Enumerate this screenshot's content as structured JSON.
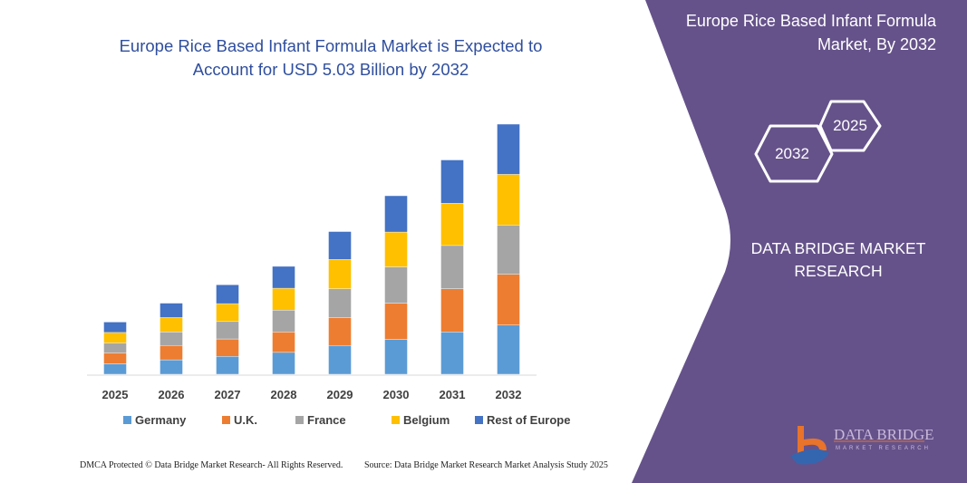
{
  "chart_data": {
    "type": "bar",
    "stacked": true,
    "title": "Europe Rice Based Infant Formula Market is Expected to Account for USD 5.03 Billion by 2032",
    "categories": [
      "2025",
      "2026",
      "2027",
      "2028",
      "2029",
      "2030",
      "2031",
      "2032"
    ],
    "series": [
      {
        "name": "Germany",
        "color": "#5b9bd5",
        "values": [
          0.21,
          0.29,
          0.36,
          0.44,
          0.58,
          0.7,
          0.85,
          0.99
        ]
      },
      {
        "name": "U.K.",
        "color": "#ed7d31",
        "values": [
          0.22,
          0.29,
          0.35,
          0.41,
          0.56,
          0.73,
          0.87,
          1.02
        ]
      },
      {
        "name": "France",
        "color": "#a5a5a5",
        "values": [
          0.2,
          0.27,
          0.35,
          0.44,
          0.58,
          0.73,
          0.87,
          0.99
        ]
      },
      {
        "name": "Belgium",
        "color": "#ffc000",
        "values": [
          0.21,
          0.29,
          0.36,
          0.44,
          0.59,
          0.7,
          0.85,
          1.02
        ]
      },
      {
        "name": "Rest of Europe",
        "color": "#4472c4",
        "values": [
          0.21,
          0.29,
          0.38,
          0.44,
          0.56,
          0.73,
          0.87,
          1.01
        ]
      }
    ],
    "ylim": [
      0,
      5.03
    ],
    "grid": false,
    "legend": "bottom",
    "xlabel": "",
    "ylabel": ""
  },
  "panel": {
    "title": "Europe Rice Based Infant Formula Market, By 2032",
    "hex_front": "2032",
    "hex_back": "2025",
    "brand": "DATA BRIDGE MARKET RESEARCH",
    "logo_text": "DATA BRIDGE",
    "logo_sub": "MARKET RESEARCH",
    "color": "#65528a"
  },
  "footer": {
    "left": "DMCA Protected © Data Bridge Market Research- All Rights Reserved.",
    "right": "Source: Data Bridge Market Research Market Analysis Study 2025"
  }
}
